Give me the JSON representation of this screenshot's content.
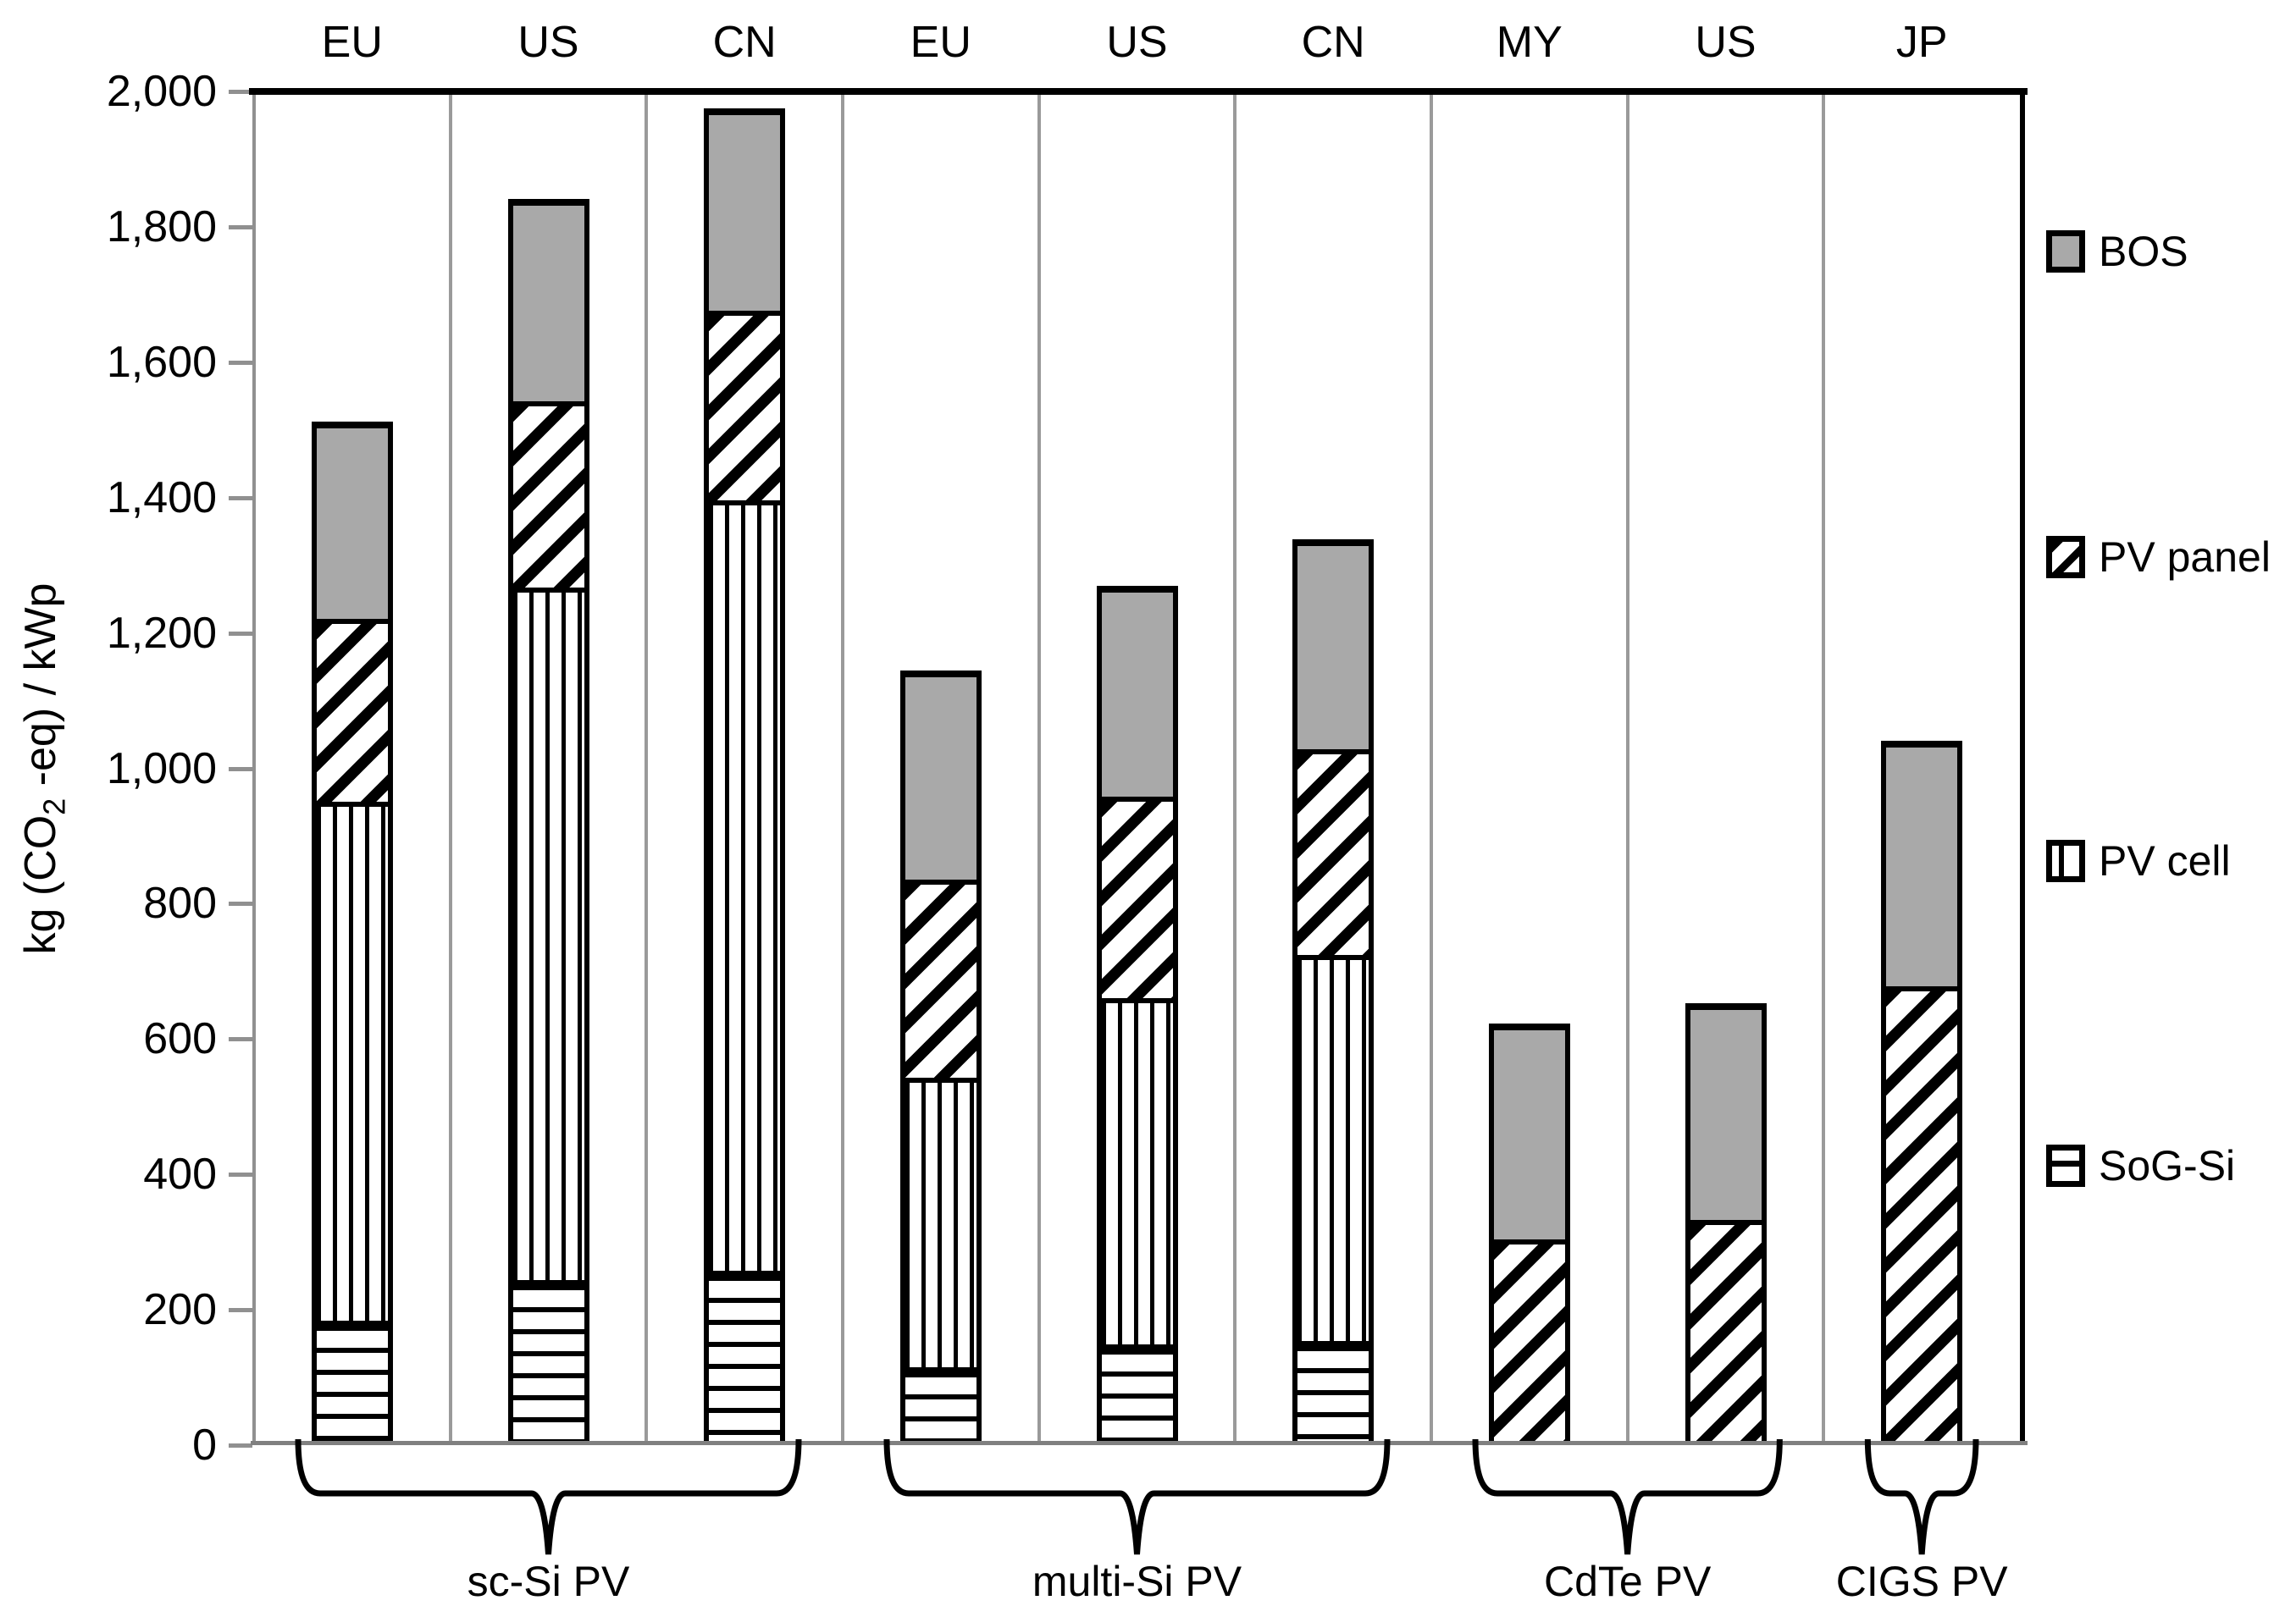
{
  "y_axis": {
    "title": {
      "prefix": "kg (CO",
      "sub": "2",
      "suffix": " -eq) / kWp"
    },
    "tick_labels_top_to_bottom": [
      "2,000",
      "1,800",
      "1,600",
      "1,400",
      "1,200",
      "1,000",
      "800",
      "600",
      "400",
      "200",
      "0"
    ],
    "max": 2000,
    "step": 200
  },
  "legend": {
    "items": [
      {
        "label": "BOS",
        "swatch": "solid-gray-swatch"
      },
      {
        "label": "PV panel",
        "swatch": "diagonal-stripes-swatch"
      },
      {
        "label": "PV cell",
        "swatch": "vertical-stripes-swatch"
      },
      {
        "label": "SoG-Si",
        "swatch": "horizontal-stripes-swatch"
      }
    ]
  },
  "chart_data": {
    "type": "bar",
    "stacked": true,
    "title": "",
    "xlabel": "",
    "ylabel": "kg (CO2-eq) / kWp",
    "ylim": [
      0,
      2000
    ],
    "ytick_step": 200,
    "grid": false,
    "legend_position": "right",
    "segment_order_bottom_to_top": [
      "SoG-Si",
      "PV cell",
      "PV panel",
      "BOS"
    ],
    "groups": [
      {
        "label": "sc-Si PV",
        "bars": [
          {
            "country": "EU",
            "SoG-Si": 175,
            "PV cell": 780,
            "PV panel": 270,
            "BOS": 290,
            "total": 1515
          },
          {
            "country": "US",
            "SoG-Si": 235,
            "PV cell": 1040,
            "PV panel": 275,
            "BOS": 295,
            "total": 1845
          },
          {
            "country": "CN",
            "SoG-Si": 250,
            "PV cell": 1155,
            "PV panel": 280,
            "BOS": 295,
            "total": 1980
          }
        ]
      },
      {
        "label": "multi-Si PV",
        "bars": [
          {
            "country": "EU",
            "SoG-Si": 105,
            "PV cell": 435,
            "PV panel": 295,
            "BOS": 310,
            "total": 1145
          },
          {
            "country": "US",
            "SoG-Si": 140,
            "PV cell": 520,
            "PV panel": 300,
            "BOS": 310,
            "total": 1270
          },
          {
            "country": "CN",
            "SoG-Si": 145,
            "PV cell": 580,
            "PV panel": 305,
            "BOS": 310,
            "total": 1340
          }
        ]
      },
      {
        "label": "CdTe PV",
        "bars": [
          {
            "country": "MY",
            "SoG-Si": 0,
            "PV cell": 0,
            "PV panel": 300,
            "BOS": 320,
            "total": 620
          },
          {
            "country": "US",
            "SoG-Si": 0,
            "PV cell": 0,
            "PV panel": 330,
            "BOS": 320,
            "total": 650
          }
        ]
      },
      {
        "label": "CIGS PV",
        "bars": [
          {
            "country": "JP",
            "SoG-Si": 0,
            "PV cell": 0,
            "PV panel": 680,
            "BOS": 360,
            "total": 1040
          }
        ]
      }
    ]
  }
}
